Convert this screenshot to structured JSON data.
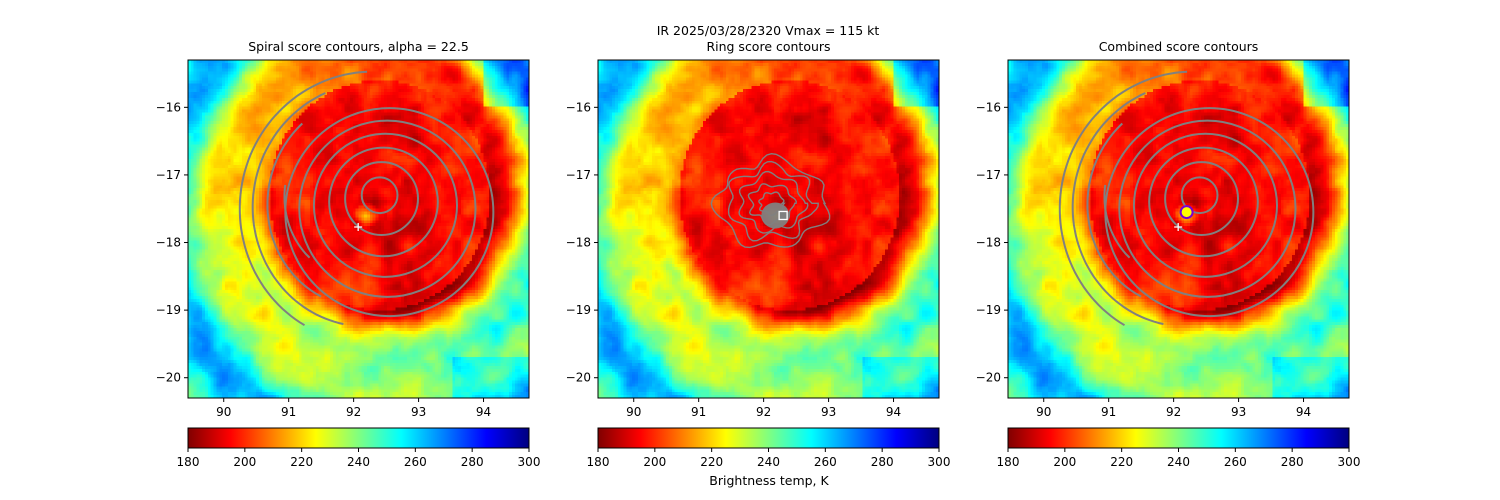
{
  "suptitle": {
    "line1": "IR  2025/03/28/2320    Vmax = 115 kt"
  },
  "colorbar": {
    "xlabel": "Brightness temp, K",
    "vmin": 180,
    "vmax": 300,
    "ticks": [
      180,
      200,
      220,
      240,
      260,
      280,
      300
    ],
    "stops": [
      "#800000",
      "#ff0000",
      "#ff8000",
      "#ffff00",
      "#80ff80",
      "#00ffff",
      "#0080ff",
      "#0000ff",
      "#000080"
    ]
  },
  "colors": {
    "contour": "#808080",
    "marker_best": "#ffffff",
    "marker_circle_fill": "#ffff00",
    "marker_circle_edge": "#7a00d4"
  },
  "chart_data": [
    {
      "type": "heatmap",
      "title": "Spiral score contours, alpha = 22.5",
      "xlim": [
        89.45,
        94.7
      ],
      "ylim": [
        -20.3,
        -15.3
      ],
      "xticks": [
        90,
        91,
        92,
        93,
        94
      ],
      "yticks": [
        -16,
        -17,
        -18,
        -19,
        -20
      ],
      "storm_center": [
        92.4,
        -17.3
      ],
      "eye": [
        92.2,
        -17.6
      ],
      "best_track_marker": [
        92.07,
        -17.77
      ],
      "score_max_marker": null,
      "contour_style": "spiral"
    },
    {
      "type": "heatmap",
      "title": "Ring score contours",
      "xlim": [
        89.45,
        94.7
      ],
      "ylim": [
        -20.3,
        -15.3
      ],
      "xticks": [
        90,
        91,
        92,
        93,
        94
      ],
      "yticks": [
        -16,
        -17,
        -18,
        -19,
        -20
      ],
      "storm_center": [
        92.4,
        -17.3
      ],
      "eye": [
        92.2,
        -17.6
      ],
      "best_track_marker": null,
      "score_max_marker": [
        92.3,
        -17.6
      ],
      "contour_style": "ring"
    },
    {
      "type": "heatmap",
      "title": "Combined score contours",
      "xlim": [
        89.45,
        94.7
      ],
      "ylim": [
        -20.3,
        -15.3
      ],
      "xticks": [
        90,
        91,
        92,
        93,
        94
      ],
      "yticks": [
        -16,
        -17,
        -18,
        -19,
        -20
      ],
      "storm_center": [
        92.4,
        -17.3
      ],
      "eye": [
        92.2,
        -17.6
      ],
      "best_track_marker": [
        92.07,
        -17.77
      ],
      "score_max_marker": [
        92.2,
        -17.55
      ],
      "contour_style": "spiral"
    }
  ]
}
